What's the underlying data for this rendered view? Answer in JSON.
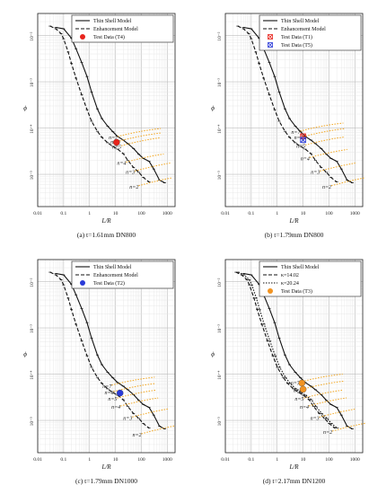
{
  "figure": {
    "panels": [
      {
        "id": "a",
        "caption": "(a) t=1.61mm DN800",
        "legend": [
          {
            "label": "Thin Shell Model",
            "kind": "thin"
          },
          {
            "label": "Enhancement Model",
            "kind": "enh"
          },
          {
            "label": "Test Data (T4)",
            "kind": "dot",
            "color": "#e8241c"
          }
        ],
        "n_labels": [
          {
            "text": "n=7",
            "x": 5.5,
            "y": 6.25e-05
          },
          {
            "text": "n=6",
            "x": 6.5,
            "y": 5e-05
          },
          {
            "text": "n=5",
            "x": 7.5,
            "y": 3.95e-05
          },
          {
            "text": "n=4",
            "x": 11.5,
            "y": 1.75e-05
          },
          {
            "text": "n=3",
            "x": 25,
            "y": 1.12e-05
          },
          {
            "text": "n=2",
            "x": 35,
            "y": 5.4e-06
          }
        ],
        "test_points": [
          {
            "x": 11,
            "y": 4.9e-05,
            "marker": "dot",
            "color": "#e8241c"
          }
        ]
      },
      {
        "id": "b",
        "caption": "(b) t=1.79mm DN800",
        "legend": [
          {
            "label": "Thin Shell Model",
            "kind": "thin"
          },
          {
            "label": "Enhancement Model",
            "kind": "enh"
          },
          {
            "label": "Test Data (T1)",
            "kind": "xsq",
            "color": "#e8241c"
          },
          {
            "label": "Test Data (T5)",
            "kind": "xsq",
            "color": "#2a3ad8"
          }
        ],
        "n_labels": [
          {
            "text": "n=7",
            "x": 3.5,
            "y": 8.2e-05
          },
          {
            "text": "n=6",
            "x": 4.5,
            "y": 6.2e-05
          },
          {
            "text": "n=5",
            "x": 5.5,
            "y": 4.1e-05
          },
          {
            "text": "n=4",
            "x": 8,
            "y": 2.2e-05
          },
          {
            "text": "n=3",
            "x": 20,
            "y": 1.12e-05
          },
          {
            "text": "n=2",
            "x": 55,
            "y": 5.4e-06
          }
        ],
        "test_points": [
          {
            "x": 10,
            "y": 6.6e-05,
            "marker": "xsq",
            "color": "#e8241c"
          },
          {
            "x": 10,
            "y": 5.5e-05,
            "marker": "xsq",
            "color": "#2a3ad8"
          }
        ]
      },
      {
        "id": "c",
        "caption": "(c) t=1.79mm DN1000",
        "legend": [
          {
            "label": "Thin Shell Model",
            "kind": "thin"
          },
          {
            "label": "Enhancement Model",
            "kind": "enh"
          },
          {
            "label": "Test Data (T2)",
            "kind": "dot",
            "color": "#2a3ad8"
          }
        ],
        "n_labels": [
          {
            "text": "n=7",
            "x": 3.2,
            "y": 5.5e-05
          },
          {
            "text": "n=6",
            "x": 3.8,
            "y": 4e-05
          },
          {
            "text": "n=5",
            "x": 5.2,
            "y": 2.9e-05
          },
          {
            "text": "n=4",
            "x": 7,
            "y": 1.95e-05
          },
          {
            "text": "n=3",
            "x": 20,
            "y": 1.13e-05
          },
          {
            "text": "n=2",
            "x": 45,
            "y": 4.9e-06
          }
        ],
        "test_points": [
          {
            "x": 15,
            "y": 3.9e-05,
            "marker": "dot",
            "color": "#2a3ad8"
          }
        ]
      },
      {
        "id": "d",
        "caption": "(d) t=2.17mm DN1200",
        "legend": [
          {
            "label": "Thin Shell Model",
            "kind": "thin"
          },
          {
            "label": "κ=14.02",
            "kind": "k1"
          },
          {
            "label": "κ=20.24",
            "kind": "k2"
          },
          {
            "label": "Test Data (T3)",
            "kind": "dot",
            "color": "#f29422"
          }
        ],
        "n_labels": [
          {
            "text": "n=7",
            "x": 3.3,
            "y": 6.4e-05
          },
          {
            "text": "n=6",
            "x": 4.2,
            "y": 4.5e-05
          },
          {
            "text": "n=5",
            "x": 4.8,
            "y": 2.9e-05
          },
          {
            "text": "n=4",
            "x": 7.5,
            "y": 1.96e-05
          },
          {
            "text": "n=3",
            "x": 19,
            "y": 1.12e-05
          },
          {
            "text": "n=2",
            "x": 60,
            "y": 5.6e-06
          }
        ],
        "test_points": [
          {
            "x": 9,
            "y": 6.4e-05,
            "marker": "dot",
            "color": "#f29422"
          },
          {
            "x": 10,
            "y": 4.7e-05,
            "marker": "dot",
            "color": "#f29422"
          }
        ]
      }
    ]
  },
  "chart_data": {
    "type": "line",
    "xlabel": "L/R",
    "ylabel": "ϕ",
    "xscale": "log",
    "yscale": "log",
    "xlim": [
      0.01,
      2000
    ],
    "ylim": [
      2e-06,
      0.03
    ],
    "x_tick_labels": [
      "0.01",
      "0.1",
      "1",
      "10",
      "100",
      "1000"
    ],
    "y_tick_labels": [
      "10⁻²",
      "10⁻³",
      "10⁻⁴",
      "10⁻⁵"
    ],
    "grid": true,
    "legend_position": "top-right",
    "series": [
      {
        "name": "Thin Shell Model",
        "x": [
          0.05,
          0.1,
          0.2,
          0.3,
          0.5,
          0.8,
          1.2,
          2,
          3,
          5,
          8,
          12,
          20,
          30,
          50,
          80,
          120,
          200,
          300,
          500,
          800
        ],
        "y": [
          0.015,
          0.014,
          0.0088,
          0.0052,
          0.0026,
          0.0013,
          0.0006,
          0.00026,
          0.00016,
          0.00011,
          8.3e-05,
          6.6e-05,
          5.5e-05,
          4.6e-05,
          3.6e-05,
          2.7e-05,
          2.2e-05,
          1.9e-05,
          1.3e-05,
          7.5e-06,
          6.5e-06
        ]
      },
      {
        "name": "Enhancement Model",
        "x": [
          0.03,
          0.05,
          0.08,
          0.1,
          0.15,
          0.2,
          0.3,
          0.5,
          0.8,
          1.2,
          2,
          3,
          5,
          8,
          12,
          20,
          30,
          50,
          80,
          120,
          200
        ],
        "y": [
          0.016,
          0.014,
          0.011,
          0.0085,
          0.0044,
          0.0025,
          0.0012,
          0.00052,
          0.00025,
          0.00014,
          8.5e-05,
          6.3e-05,
          4.8e-05,
          4e-05,
          3.5e-05,
          2.8e-05,
          2e-05,
          1.4e-05,
          1.1e-05,
          8.5e-06,
          6.8e-06
        ]
      }
    ]
  }
}
